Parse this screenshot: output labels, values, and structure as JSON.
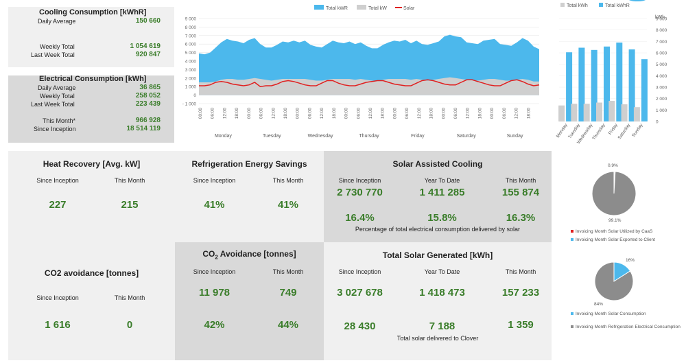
{
  "cooling": {
    "title": "Cooling Consumption [kWhR]",
    "daily_label": "Daily Average",
    "daily_value": "150 660",
    "weekly_label": "Weekly Total",
    "weekly_value": "1 054 619",
    "lastweek_label": "Last Week Total",
    "lastweek_value": "920 847"
  },
  "electrical": {
    "title": "Electrical Consumption [kWh]",
    "daily_label": "Daily Average",
    "daily_value": "36 865",
    "weekly_label": "Weekly Total",
    "weekly_value": "258 052",
    "lastweek_label": "Last Week Total",
    "lastweek_value": "223 439",
    "month_label": "This Month*",
    "month_value": "966 928",
    "inception_label": "Since Inception",
    "inception_value": "18 514 119"
  },
  "heat_recovery": {
    "title": "Heat Recovery [Avg. kW]",
    "inception_label": "Since Inception",
    "month_label": "This Month",
    "inception_value": "227",
    "month_value": "215"
  },
  "refrigeration": {
    "title": "Refrigeration Energy Savings",
    "inception_label": "Since Inception",
    "month_label": "This Month",
    "inception_value": "41%",
    "month_value": "41%"
  },
  "solar_cooling": {
    "title": "Solar Assisted Cooling",
    "inception_label": "Since Inception",
    "ytd_label": "Year To Date",
    "month_label": "This Month",
    "inception_value": "2 730 770",
    "ytd_value": "1 411 285",
    "month_value": "155 874",
    "inception_pct": "16.4%",
    "ytd_pct": "15.8%",
    "month_pct": "16.3%",
    "note": "Percentage of total electrical consumption delivered by solar"
  },
  "co2_left": {
    "title": "CO2 avoidance [tonnes]",
    "inception_label": "Since Inception",
    "month_label": "This Month",
    "inception_value": "1 616",
    "month_value": "0"
  },
  "co2_mid": {
    "title_prefix": "CO",
    "title_sub": "2",
    "title_suffix": " Avoidance [tonnes]",
    "inception_label": "Since Inception",
    "month_label": "This Month",
    "inception_value": "11 978",
    "month_value": "749",
    "inception_pct": "42%",
    "month_pct": "44%"
  },
  "total_solar": {
    "title": "Total Solar Generated [kWh]",
    "inception_label": "Since Inception",
    "ytd_label": "Year To Date",
    "month_label": "This Month",
    "inception_value": "3 027 678",
    "ytd_value": "1 418 473",
    "month_value": "157 233",
    "clover_inception": "28 430",
    "clover_ytd": "7 188",
    "clover_month": "1 359",
    "note": "Total solar delivered to Clover"
  },
  "pie1": {
    "small_label": "0.9%",
    "large_label": "99.1%",
    "legend": [
      "Invoicing Month Solar Utilized by CaaS",
      "Invoicing Month Solar Exported to Client"
    ]
  },
  "pie2": {
    "small_label": "16%",
    "large_label": "84%",
    "legend": [
      "Invoicing Month Solar Consumption",
      "Invoicing Month Refrigeration Electrical Consumption"
    ]
  },
  "colors": {
    "total_kwr": "#4cb8ec",
    "total_kw": "#cfcfcf",
    "solar": "#e02020",
    "green": "#3a7d2a",
    "pie_grey": "#8c8c8c"
  },
  "chart_data": [
    {
      "type": "area",
      "legend": [
        "Total kWR",
        "Total kW",
        "Solar"
      ],
      "ylim": [
        -1000,
        9000
      ],
      "yticks": [
        "9 000",
        "8 000",
        "7 000",
        "6 000",
        "5 000",
        "4 000",
        "3 000",
        "2 000",
        "1 000",
        "0",
        "- 1 000"
      ],
      "time_ticks": [
        "00:00",
        "06:00",
        "12:00",
        "18:00"
      ],
      "days": [
        "Monday",
        "Tuesday",
        "Wednesday",
        "Thursday",
        "Friday",
        "Saturday",
        "Sunday"
      ],
      "series": [
        {
          "name": "Total kWR",
          "values": [
            4900,
            4800,
            5000,
            5600,
            6200,
            6600,
            6400,
            6300,
            6100,
            6500,
            6700,
            6000,
            5600,
            5600,
            5900,
            6300,
            6200,
            6400,
            6200,
            6400,
            5900,
            5700,
            5600,
            6000,
            6400,
            6200,
            6100,
            6300,
            6000,
            6200,
            5800,
            5500,
            5500,
            5900,
            6200,
            6400,
            6300,
            6500,
            6100,
            6400,
            6000,
            5900,
            6100,
            6300,
            6900,
            7100,
            6900,
            6800,
            6200,
            6100,
            6000,
            6400,
            6500,
            6600,
            6000,
            5900,
            5800,
            6200,
            6700,
            6400,
            5700,
            5400
          ]
        },
        {
          "name": "Total kW",
          "values": [
            1500,
            1500,
            1500,
            1600,
            1800,
            1900,
            1900,
            1800,
            1800,
            1900,
            2000,
            1900,
            1800,
            1700,
            1800,
            1900,
            1900,
            1900,
            1900,
            1900,
            1800,
            1700,
            1700,
            1800,
            1900,
            1900,
            1900,
            1900,
            1800,
            1900,
            1800,
            1700,
            1700,
            1800,
            1900,
            1900,
            1900,
            1900,
            1800,
            1900,
            1800,
            1700,
            1800,
            1900,
            2000,
            2100,
            2000,
            1900,
            1800,
            1800,
            1700,
            1800,
            1900,
            1900,
            1800,
            1700,
            1700,
            1800,
            1900,
            1800,
            1600,
            1600
          ]
        },
        {
          "name": "Solar",
          "values": [
            1100,
            1100,
            1200,
            1500,
            1600,
            1500,
            1300,
            1200,
            1100,
            1200,
            1500,
            1000,
            1100,
            1100,
            1300,
            1600,
            1700,
            1600,
            1400,
            1200,
            1100,
            1100,
            1400,
            1700,
            1700,
            1400,
            1200,
            1100,
            1100,
            1300,
            1500,
            1600,
            1700,
            1700,
            1500,
            1300,
            1200,
            1100,
            1100,
            1400,
            1700,
            1800,
            1700,
            1500,
            1300,
            1200,
            1200,
            1500,
            1800,
            1800,
            1600,
            1400,
            1200,
            1100,
            1100,
            1400,
            1700,
            1800,
            1600,
            1300,
            1100,
            1200
          ]
        }
      ]
    },
    {
      "type": "bar",
      "legend": [
        "Total kWh",
        "Total kWhR"
      ],
      "ylabel": "kWh",
      "categories": [
        "Monday",
        "Tuesday",
        "Wednesday",
        "Thursday",
        "Friday",
        "Saturday",
        "Sunday"
      ],
      "yticks": [
        "9 000",
        "8 000",
        "7 000",
        "6 000",
        "5 000",
        "4 000",
        "3 000",
        "2 000",
        "1 000",
        "0"
      ],
      "ylim": [
        0,
        9000
      ],
      "series": [
        {
          "name": "Total kWh",
          "values": [
            1400,
            1550,
            1550,
            1650,
            1800,
            1500,
            1250
          ]
        },
        {
          "name": "Total kWhR",
          "values": [
            6050,
            6450,
            6250,
            6550,
            6900,
            6300,
            5450
          ]
        }
      ]
    },
    {
      "type": "pie",
      "labels": [
        "0.9%",
        "99.1%"
      ],
      "values": [
        0.9,
        99.1
      ]
    },
    {
      "type": "pie",
      "labels": [
        "16%",
        "84%"
      ],
      "values": [
        16,
        84
      ]
    }
  ]
}
